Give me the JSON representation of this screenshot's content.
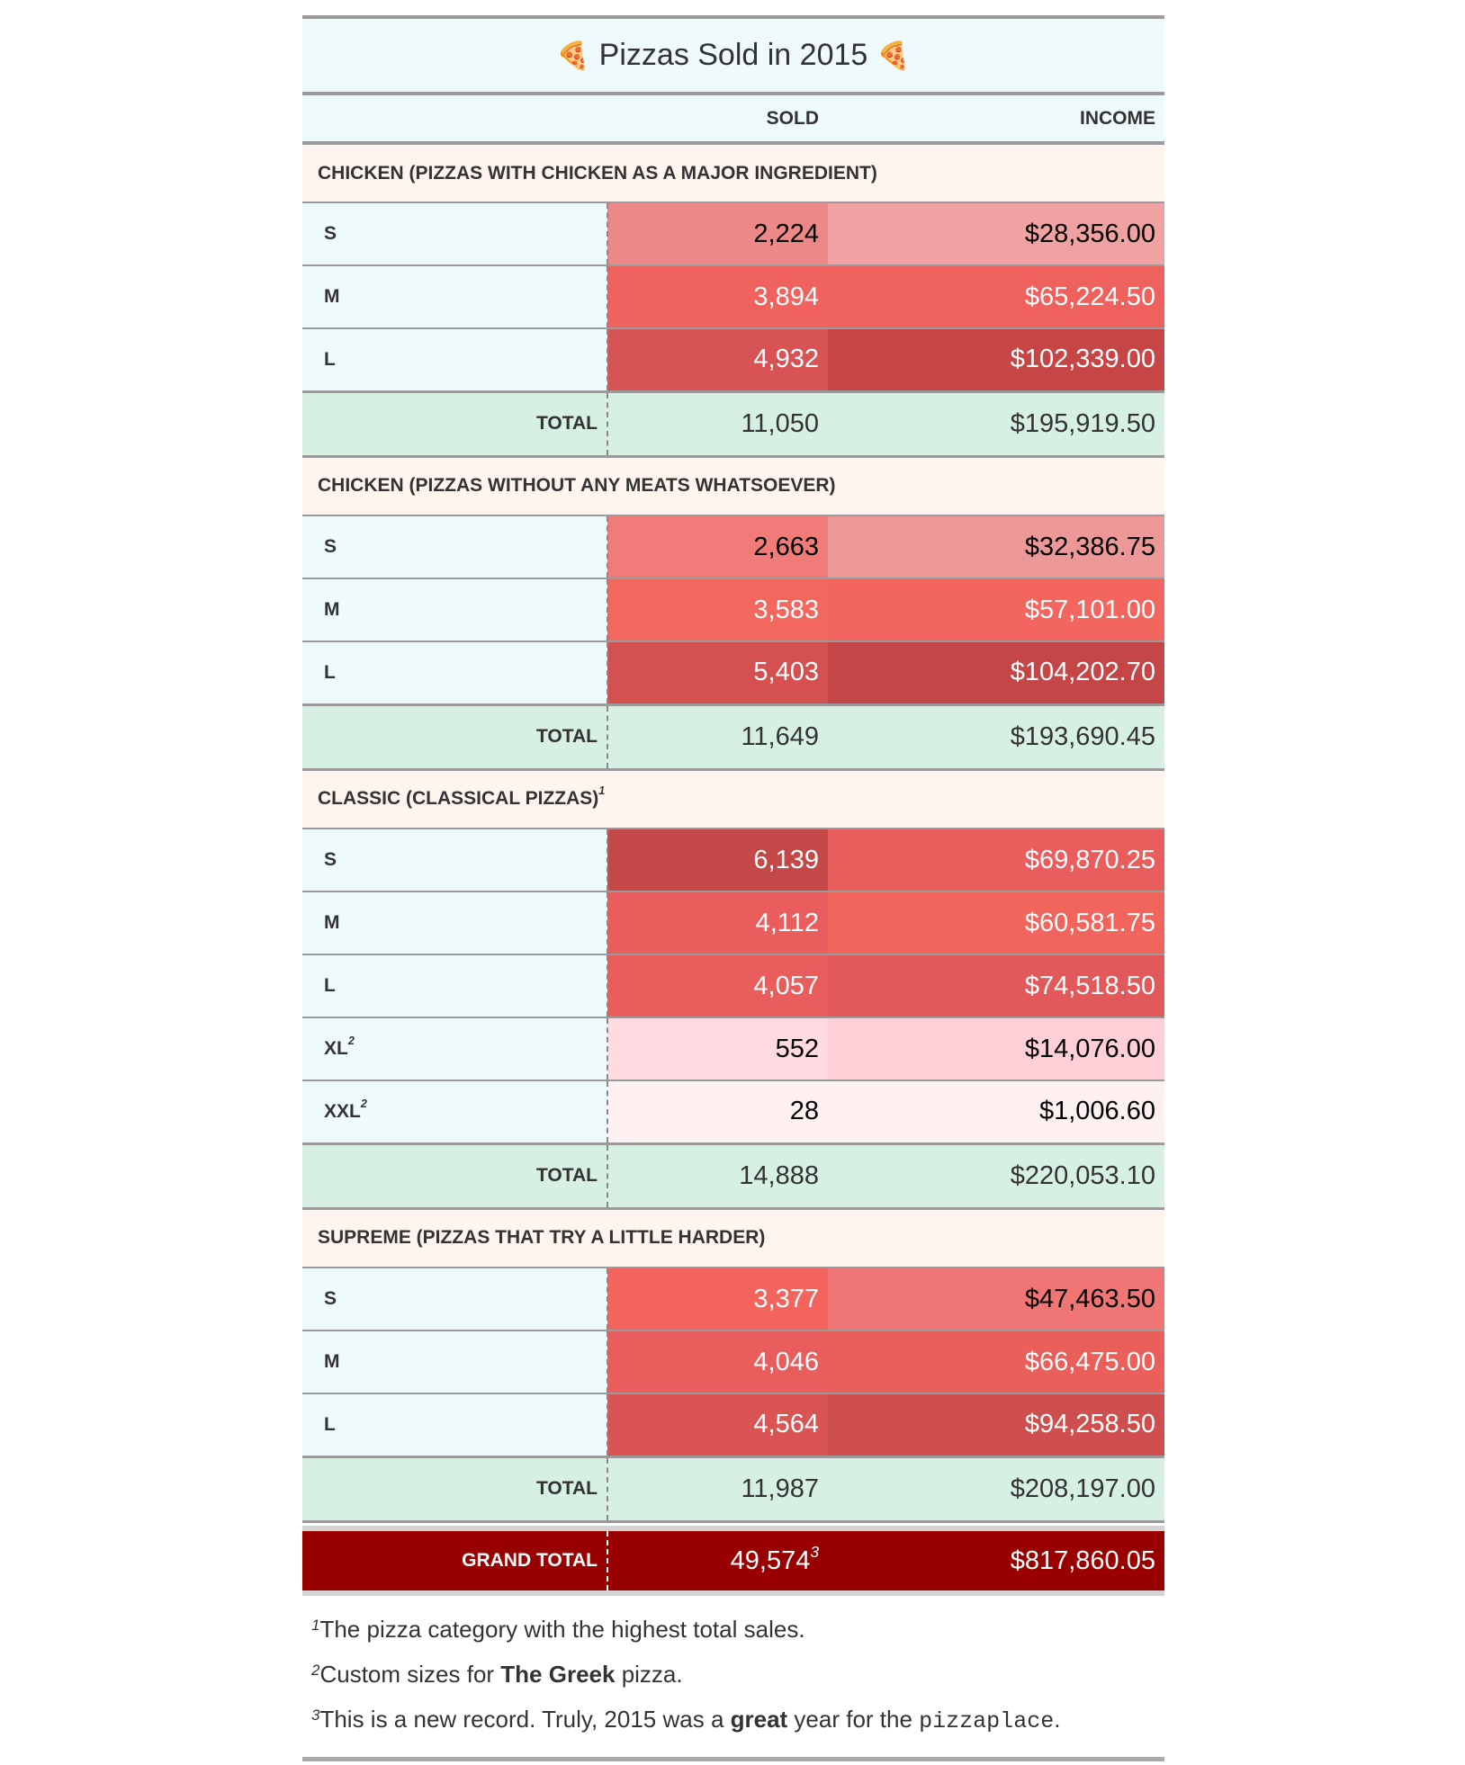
{
  "title": "Pizzas Sold in 2015",
  "title_icon": "pizza-slice-icon",
  "title_emoji": "🍕",
  "columns": {
    "sold": "SOLD",
    "income": "INCOME"
  },
  "groups": [
    {
      "label": "CHICKEN (PIZZAS WITH CHICKEN AS A MAJOR INGREDIENT)",
      "note": "",
      "rows": [
        {
          "size": "S",
          "note": "",
          "sold": "2,224",
          "income": "$28,356.00",
          "sold_color": "#ec8888",
          "income_color": "#f0a2a2",
          "sold_text": "#000000",
          "income_text": "#000000"
        },
        {
          "size": "M",
          "note": "",
          "sold": "3,894",
          "income": "$65,224.50",
          "sold_color": "#ef625e",
          "income_color": "#ee615d",
          "sold_text": "#ffffff",
          "income_text": "#ffffff"
        },
        {
          "size": "L",
          "note": "",
          "sold": "4,932",
          "income": "$102,339.00",
          "sold_color": "#d85354",
          "income_color": "#c64646",
          "sold_text": "#ffffff",
          "income_text": "#ffffff"
        }
      ],
      "total_label": "TOTAL",
      "total_sold": "11,050",
      "total_income": "$195,919.50"
    },
    {
      "label": "CHICKEN (PIZZAS WITHOUT ANY MEATS WHATSOEVER)",
      "note": "",
      "rows": [
        {
          "size": "S",
          "note": "",
          "sold": "2,663",
          "income": "$32,386.75",
          "sold_color": "#f07b78",
          "income_color": "#ed9898",
          "sold_text": "#000000",
          "income_text": "#000000"
        },
        {
          "size": "M",
          "note": "",
          "sold": "3,583",
          "income": "$57,101.00",
          "sold_color": "#f2685f",
          "income_color": "#f3665f",
          "sold_text": "#ffffff",
          "income_text": "#ffffff"
        },
        {
          "size": "L",
          "note": "",
          "sold": "5,403",
          "income": "$104,202.70",
          "sold_color": "#d55051",
          "income_color": "#c54646",
          "sold_text": "#ffffff",
          "income_text": "#ffffff"
        }
      ],
      "total_label": "TOTAL",
      "total_sold": "11,649",
      "total_income": "$193,690.45"
    },
    {
      "label": "CLASSIC (CLASSICAL PIZZAS)",
      "note": "1",
      "rows": [
        {
          "size": "S",
          "note": "",
          "sold": "6,139",
          "income": "$69,870.25",
          "sold_color": "#c54848",
          "income_color": "#e95e5c",
          "sold_text": "#ffffff",
          "income_text": "#ffffff"
        },
        {
          "size": "M",
          "note": "",
          "sold": "4,112",
          "income": "$60,581.75",
          "sold_color": "#e95e5c",
          "income_color": "#f1655c",
          "sold_text": "#ffffff",
          "income_text": "#ffffff"
        },
        {
          "size": "L",
          "note": "",
          "sold": "4,057",
          "income": "$74,518.50",
          "sold_color": "#e95e5c",
          "income_color": "#e2595b",
          "sold_text": "#ffffff",
          "income_text": "#ffffff"
        },
        {
          "size": "XL",
          "note": "2",
          "sold": "552",
          "income": "$14,076.00",
          "sold_color": "#fedbe0",
          "income_color": "#fecfd7",
          "sold_text": "#000000",
          "income_text": "#000000"
        },
        {
          "size": "XXL",
          "note": "2",
          "sold": "28",
          "income": "$1,006.60",
          "sold_color": "#fff0f2",
          "income_color": "#fff0f2",
          "sold_text": "#000000",
          "income_text": "#000000"
        }
      ],
      "total_label": "TOTAL",
      "total_sold": "14,888",
      "total_income": "$220,053.10"
    },
    {
      "label": "SUPREME (PIZZAS THAT TRY A LITTLE HARDER)",
      "note": "",
      "rows": [
        {
          "size": "S",
          "note": "",
          "sold": "3,377",
          "income": "$47,463.50",
          "sold_color": "#f4645f",
          "income_color": "#f07575",
          "sold_text": "#ffffff",
          "income_text": "#000000"
        },
        {
          "size": "M",
          "note": "",
          "sold": "4,046",
          "income": "$66,475.00",
          "sold_color": "#e95e5c",
          "income_color": "#eb5f5b",
          "sold_text": "#ffffff",
          "income_text": "#ffffff"
        },
        {
          "size": "L",
          "note": "",
          "sold": "4,564",
          "income": "$94,258.50",
          "sold_color": "#da5453",
          "income_color": "#cf4e4e",
          "sold_text": "#ffffff",
          "income_text": "#ffffff"
        }
      ],
      "total_label": "TOTAL",
      "total_sold": "11,987",
      "total_income": "$208,197.00"
    }
  ],
  "grand_total": {
    "label": "GRAND TOTAL",
    "sold": "49,574",
    "sold_note": "3",
    "income": "$817,860.05",
    "color": "#990000"
  },
  "footnotes": [
    {
      "mark": "1",
      "parts": [
        {
          "text": "The pizza category with the highest total sales.",
          "style": "plain"
        }
      ]
    },
    {
      "mark": "2",
      "parts": [
        {
          "text": "Custom sizes for ",
          "style": "plain"
        },
        {
          "text": "The Greek",
          "style": "bold"
        },
        {
          "text": " pizza.",
          "style": "plain"
        }
      ]
    },
    {
      "mark": "3",
      "parts": [
        {
          "text": "This is a new record. Truly, 2015 was a ",
          "style": "plain"
        },
        {
          "text": "great",
          "style": "bold"
        },
        {
          "text": " year for the ",
          "style": "plain"
        },
        {
          "text": "pizzaplace",
          "style": "code"
        },
        {
          "text": ".",
          "style": "plain"
        }
      ]
    }
  ]
}
